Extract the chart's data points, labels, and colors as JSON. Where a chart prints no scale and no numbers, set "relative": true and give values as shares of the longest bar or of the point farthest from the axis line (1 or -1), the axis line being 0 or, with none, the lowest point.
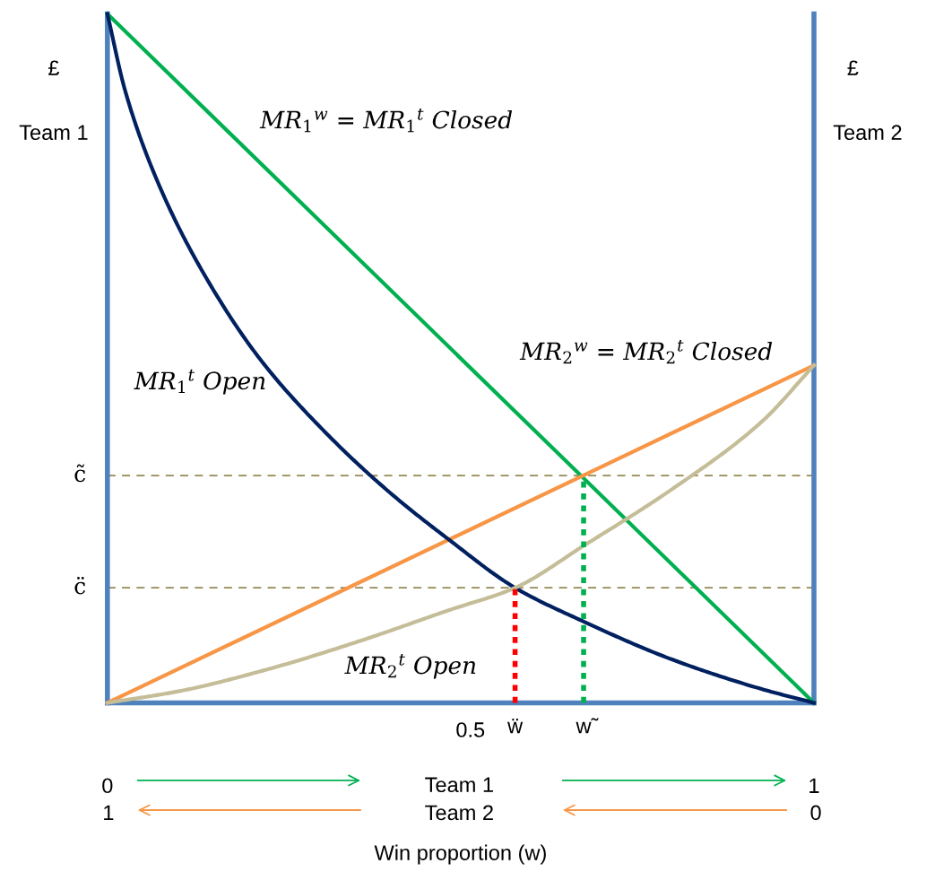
{
  "chart_data": {
    "type": "line",
    "relative": true,
    "xlim": [
      0,
      1
    ],
    "xticks": [
      0,
      1
    ],
    "xlabel": "Win proportion (w)",
    "legend": false,
    "series": [
      {
        "x": [
          0,
          1
        ],
        "values": [
          1,
          0
        ],
        "color": "#00b050"
      },
      {
        "x": [
          0,
          1
        ],
        "values": [
          0,
          0.49
        ],
        "color": "#f79646"
      },
      {
        "x": [
          0,
          0.025,
          0.07,
          0.133,
          0.216,
          0.311,
          0.4,
          0.482,
          0.577,
          0.674,
          0.799,
          0.926,
          1
        ],
        "values": [
          1,
          0.889,
          0.759,
          0.629,
          0.499,
          0.39,
          0.305,
          0.238,
          0.167,
          0.118,
          0.063,
          0.02,
          0
        ],
        "color": "#002060"
      },
      {
        "x": [
          0,
          0.102,
          0.228,
          0.355,
          0.482,
          0.577,
          0.674,
          0.799,
          0.926,
          1
        ],
        "values": [
          0,
          0.017,
          0.049,
          0.089,
          0.134,
          0.167,
          0.228,
          0.31,
          0.408,
          0.49
        ],
        "color": "#c4bd97"
      },
      {
        "x": [
          0.577,
          0.577
        ],
        "values": [
          0,
          0.167
        ],
        "color": "#ff0000",
        "line_style": "dotted"
      },
      {
        "x": [
          0.674,
          0.674
        ],
        "values": [
          0,
          0.33
        ],
        "color": "#00b050",
        "line_style": "dotted"
      }
    ],
    "ref_lines": [
      {
        "axis": "y",
        "value": 0.33,
        "label": "c̃",
        "color": "#948a54",
        "line_style": "dashed"
      },
      {
        "axis": "y",
        "value": 0.167,
        "label": "c̈",
        "color": "#948a54",
        "line_style": "dashed"
      }
    ],
    "annotations": [
      "MR$_{1}$$^{w}$ = MR$_{1}$$^{t}$ Closed",
      "MR$_{2}$$^{w}$ = MR$_{2}$$^{t}$ Closed",
      "MR$_{1}$$^{t}$ Open",
      "MR$_{2}$$^{t}$ Open",
      "£",
      "Team 1",
      "£",
      "Team 2",
      "Team 1",
      "Team 2",
      "1",
      "0",
      "0.5",
      {
        "text": "ẅ",
        "x": 0.577,
        "y": 0
      },
      {
        "text": "w̃",
        "x": 0.674,
        "y": 0
      }
    ]
  }
}
